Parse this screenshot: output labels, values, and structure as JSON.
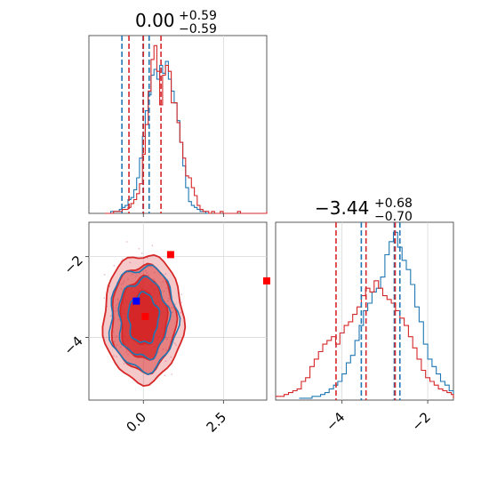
{
  "chart_data": {
    "type": "corner",
    "panels": [
      {
        "id": "hist_x",
        "type": "histogram",
        "title": {
          "value": "0.00",
          "plus": "+0.59",
          "minus": "−0.59"
        },
        "xlim": [
          -1.7,
          3.85
        ],
        "series": [
          {
            "color": "#1f77b4",
            "bin_start": -1.2,
            "bin_width": 0.09,
            "counts": [
              0,
              0,
              1,
              1,
              1,
              2,
              3,
              4,
              7,
              8,
              12,
              18,
              28,
              39,
              52,
              60,
              70,
              73,
              68,
              75,
              71,
              77,
              68,
              62,
              56,
              47,
              36,
              24,
              13,
              6,
              4,
              3,
              2,
              1,
              1,
              0
            ],
            "quantile_lines": [
              -0.67,
              -0.01,
              0.18
            ]
          },
          {
            "color": "#d62728",
            "bin_start": -1.2,
            "bin_width": 0.09,
            "counts": [
              0,
              0,
              0,
              1,
              1,
              1,
              2,
              2,
              3,
              5,
              7,
              10,
              15,
              30,
              45,
              62,
              78,
              85,
              72,
              55,
              70,
              75,
              72,
              56,
              56,
              46,
              36,
              28,
              19,
              18,
              13,
              9,
              4,
              2,
              1,
              1,
              0,
              1,
              0,
              0,
              1,
              0,
              0,
              0,
              0,
              0,
              1,
              0,
              0,
              0,
              0,
              0,
              0,
              0,
              0,
              0,
              0,
              0,
              0,
              0,
              1
            ],
            "quantile_lines": [
              -0.45,
              0.0,
              0.55
            ]
          }
        ]
      },
      {
        "id": "hist_y",
        "type": "histogram",
        "title": {
          "value": "−3.44",
          "plus": "+0.68",
          "minus": "−0.70"
        },
        "xlim": [
          -5.55,
          -1.4
        ],
        "series": [
          {
            "color": "#1f77b4",
            "bin_start": -5.0,
            "bin_width": 0.1,
            "counts": [
              1,
              1,
              1,
              2,
              2,
              3,
              4,
              6,
              8,
              10,
              14,
              20,
              24,
              32,
              40,
              48,
              52,
              58,
              60,
              66,
              78,
              85,
              90,
              82,
              75,
              70,
              62,
              50,
              42,
              30,
              22,
              18,
              14,
              10,
              8,
              5,
              3,
              2,
              1,
              1
            ],
            "quantile_lines": [
              -3.55,
              -2.78,
              -2.65
            ]
          },
          {
            "color": "#d62728",
            "bin_start": -5.55,
            "bin_width": 0.1,
            "counts": [
              2,
              2,
              3,
              4,
              5,
              6,
              10,
              12,
              18,
              22,
              26,
              30,
              32,
              34,
              30,
              36,
              40,
              42,
              46,
              50,
              56,
              60,
              58,
              64,
              60,
              56,
              54,
              52,
              48,
              44,
              40,
              34,
              28,
              22,
              16,
              12,
              10,
              8,
              6,
              5,
              4,
              3,
              2,
              2,
              1,
              1
            ],
            "quantile_lines": [
              -4.14,
              -3.44,
              -2.76
            ]
          }
        ]
      },
      {
        "id": "scatter_2d",
        "type": "contour",
        "xlim": [
          -1.7,
          3.85
        ],
        "ylim": [
          -5.55,
          -1.15
        ],
        "colors": {
          "fill": "#d62728",
          "contour_red": "#d62728",
          "contour_blue": "#1f77b4",
          "points": "#e0a7c6"
        },
        "center": [
          0.0,
          -3.44
        ],
        "markers": [
          {
            "color": "#0000ff",
            "x": -0.22,
            "y": -3.1
          },
          {
            "color": "#ff0000",
            "x": 0.06,
            "y": -3.48
          },
          {
            "color": "#ff0000",
            "x": 0.85,
            "y": -1.95
          },
          {
            "color": "#ff0000",
            "x": 3.85,
            "y": -2.6
          }
        ]
      }
    ],
    "axes": {
      "bottom_left_ticks": [
        "0.0",
        "2.5"
      ],
      "bottom_left_tick_values": [
        0.0,
        2.5
      ],
      "left_ticks": [
        "−2",
        "−4"
      ],
      "left_tick_values": [
        -2,
        -4
      ],
      "bottom_right_ticks": [
        "−4",
        "−2"
      ],
      "bottom_right_tick_values": [
        -4,
        -2
      ]
    },
    "grid": true
  }
}
